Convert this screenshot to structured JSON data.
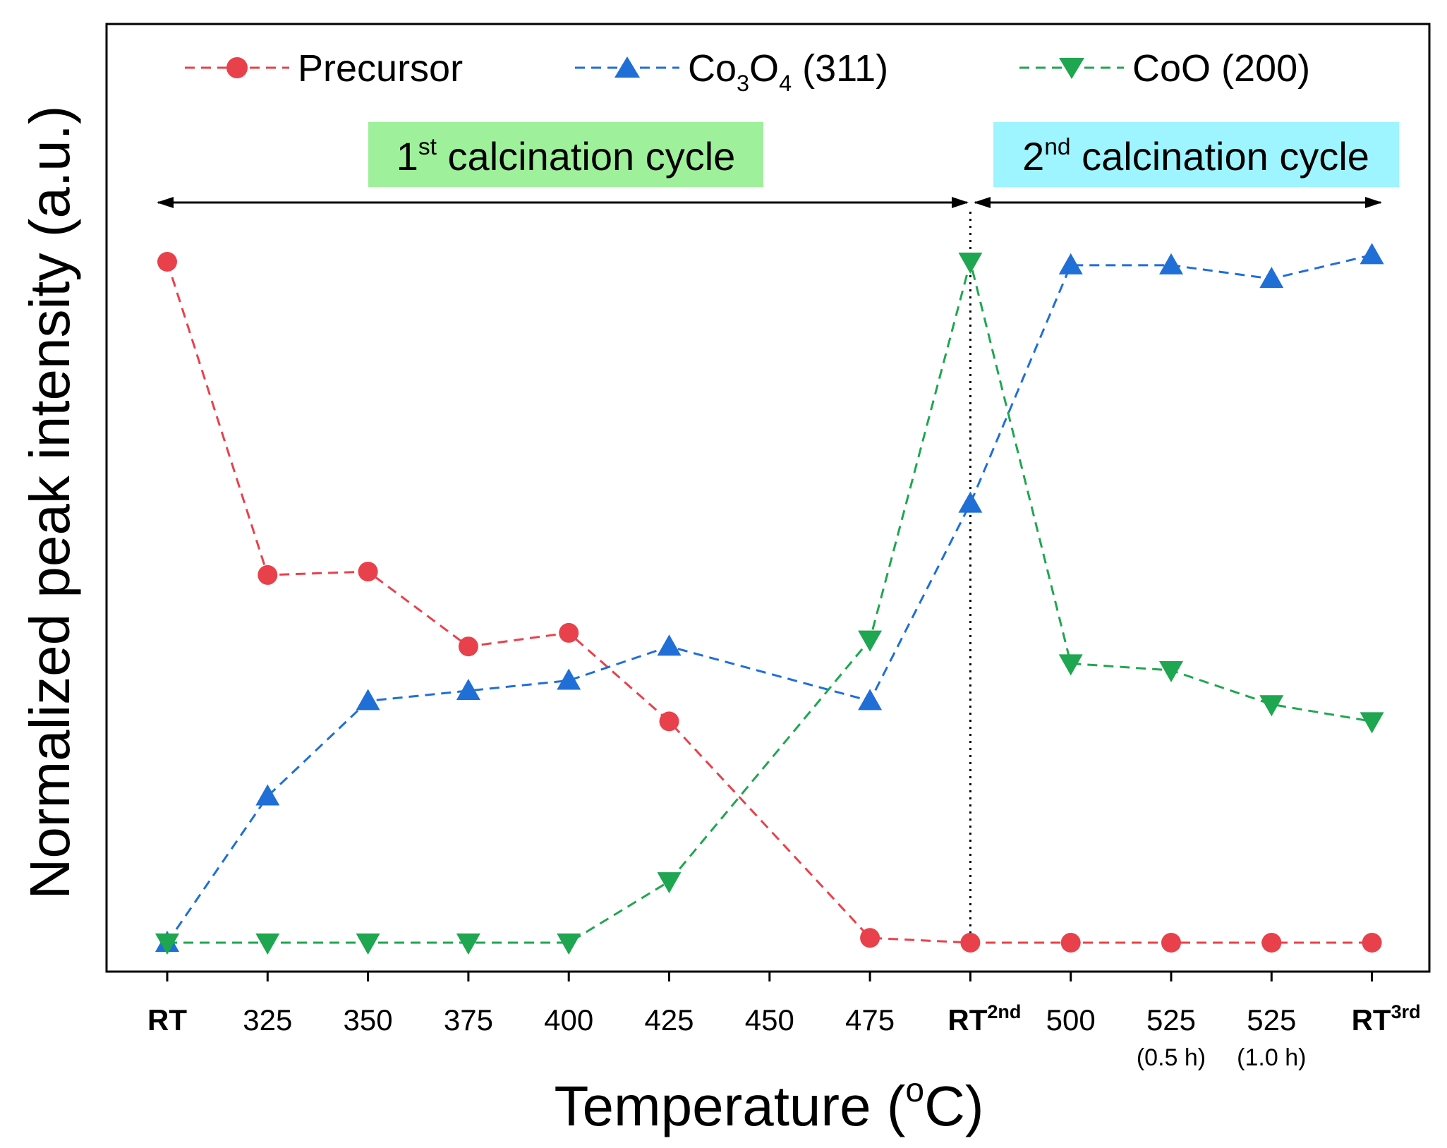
{
  "chart_data": {
    "type": "line",
    "title": "",
    "xlabel": "Temperature (°C)",
    "xlabel_main": "Temperature (",
    "xlabel_sup": "o",
    "xlabel_end": "C)",
    "ylabel": "Normalized peak intensity (a.u.)",
    "categories": [
      {
        "main": "RT",
        "sup": "",
        "sub": "",
        "bold": true
      },
      {
        "main": "325",
        "sup": "",
        "sub": "",
        "bold": false
      },
      {
        "main": "350",
        "sup": "",
        "sub": "",
        "bold": false
      },
      {
        "main": "375",
        "sup": "",
        "sub": "",
        "bold": false
      },
      {
        "main": "400",
        "sup": "",
        "sub": "",
        "bold": false
      },
      {
        "main": "425",
        "sup": "",
        "sub": "",
        "bold": false
      },
      {
        "main": "450",
        "sup": "",
        "sub": "",
        "bold": false
      },
      {
        "main": "475",
        "sup": "",
        "sub": "",
        "bold": false
      },
      {
        "main": "RT",
        "sup": "2nd",
        "sub": "",
        "bold": true
      },
      {
        "main": "500",
        "sup": "",
        "sub": "",
        "bold": false
      },
      {
        "main": "525",
        "sup": "",
        "sub": "(0.5 h)",
        "bold": false
      },
      {
        "main": "525",
        "sup": "",
        "sub": "(1.0 h)",
        "bold": false
      },
      {
        "main": "RT",
        "sup": "3rd",
        "sub": "",
        "bold": true
      }
    ],
    "ylim": [
      0,
      1.05
    ],
    "grid": false,
    "legend_position": "top",
    "series": [
      {
        "name": "Precursor",
        "legend_main": "Precursor",
        "color": "#e8414b",
        "marker": "circle",
        "points": [
          [
            0,
            1.0
          ],
          [
            1,
            0.54
          ],
          [
            2,
            0.545
          ],
          [
            3,
            0.435
          ],
          [
            4,
            0.455
          ],
          [
            5,
            0.325
          ],
          [
            7,
            0.007
          ],
          [
            8,
            0.0
          ],
          [
            9,
            0.0
          ],
          [
            10,
            0.0
          ],
          [
            11,
            0.0
          ],
          [
            12,
            0.0
          ]
        ]
      },
      {
        "name": "Co3O4 (311)",
        "legend_main": "Co",
        "legend_sub1": "3",
        "legend_mid": "O",
        "legend_sub2": "4",
        "legend_end": " (311)",
        "color": "#1f6fd6",
        "marker": "triangle-up",
        "points": [
          [
            0,
            0.0
          ],
          [
            1,
            0.215
          ],
          [
            2,
            0.355
          ],
          [
            3,
            0.37
          ],
          [
            4,
            0.385
          ],
          [
            5,
            0.435
          ],
          [
            7,
            0.355
          ],
          [
            8,
            0.645
          ],
          [
            9,
            0.995
          ],
          [
            10,
            0.995
          ],
          [
            11,
            0.975
          ],
          [
            12,
            1.01
          ]
        ]
      },
      {
        "name": "CoO (200)",
        "legend_main": "CoO (200)",
        "color": "#1fa650",
        "marker": "triangle-down",
        "points": [
          [
            0,
            0.0
          ],
          [
            1,
            0.0
          ],
          [
            2,
            0.0
          ],
          [
            3,
            0.0
          ],
          [
            4,
            0.0
          ],
          [
            5,
            0.09
          ],
          [
            7,
            0.445
          ],
          [
            8,
            1.0
          ],
          [
            9,
            0.41
          ],
          [
            10,
            0.4
          ],
          [
            11,
            0.35
          ],
          [
            12,
            0.325
          ]
        ]
      }
    ],
    "annotations": [
      {
        "name": "first-cycle",
        "main": "1",
        "sup": "st",
        "end": " calcination cycle",
        "bg": "#9ef09a",
        "range": [
          0,
          8
        ]
      },
      {
        "name": "second-cycle",
        "main": "2",
        "sup": "nd",
        "end": " calcination cycle",
        "bg": "#9ef5ff",
        "range": [
          8,
          12
        ]
      }
    ],
    "divider_at": 8
  }
}
